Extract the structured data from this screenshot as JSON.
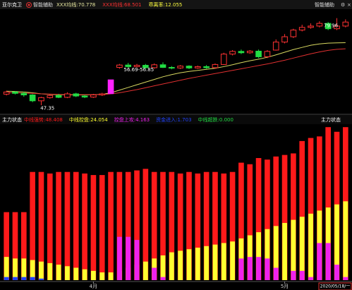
{
  "chart_data": [
    {
      "type": "candlestick",
      "title": "亚尔克卫",
      "indicator": "智能辅助",
      "header_items": [
        {
          "text": "XXX均线:70.778",
          "color": "#e8e8a0"
        },
        {
          "text": "XXX均线:68.501",
          "color": "#ff3030"
        },
        {
          "text": "乖离率:12.055",
          "color": "#ffff40"
        }
      ],
      "open": [
        51.5,
        52.3,
        51.8,
        51.2,
        49.0,
        50.2,
        51.0,
        50.3,
        51.6,
        50.8,
        50.4,
        51.2,
        51.68,
        61.5,
        62.4,
        61.8,
        62.3,
        61.4,
        62.5,
        61.5,
        61.3,
        62.0,
        61.3,
        61.8,
        61.4,
        62.6,
        66.5,
        67.5,
        67.0,
        67.6,
        65.5,
        68.0,
        71.0,
        73.0,
        75.5,
        76.5,
        77.0,
        78.0,
        76.0,
        77.0
      ],
      "high": [
        52.8,
        52.6,
        52.4,
        51.5,
        50.5,
        51.5,
        51.6,
        52.2,
        52.0,
        51.2,
        51.6,
        52.0,
        56.85,
        62.8,
        63.2,
        62.8,
        62.8,
        63.0,
        63.4,
        62.0,
        62.4,
        62.3,
        62.2,
        62.4,
        63.0,
        67.0,
        68.0,
        68.2,
        68.0,
        68.2,
        68.0,
        72.0,
        74.0,
        76.0,
        77.5,
        78.0,
        78.8,
        78.5,
        79.96,
        79.5
      ],
      "low": [
        51.0,
        51.4,
        50.5,
        48.5,
        47.35,
        49.8,
        50.0,
        50.0,
        50.4,
        50.0,
        50.1,
        50.8,
        51.6,
        61.0,
        61.2,
        61.5,
        61.0,
        61.0,
        61.3,
        60.8,
        60.9,
        60.9,
        61.0,
        61.0,
        61.0,
        62.4,
        66.0,
        66.5,
        66.6,
        65.0,
        65.0,
        67.8,
        70.5,
        72.5,
        75.0,
        76.0,
        76.5,
        75.5,
        75.5,
        76.5
      ],
      "close": [
        52.3,
        51.8,
        51.2,
        49.0,
        50.2,
        51.0,
        50.3,
        51.6,
        50.8,
        50.4,
        51.2,
        51.6,
        56.85,
        62.4,
        61.8,
        62.3,
        61.4,
        62.5,
        61.5,
        61.3,
        62.0,
        61.3,
        61.8,
        61.4,
        62.6,
        66.5,
        67.5,
        67.0,
        67.6,
        65.5,
        67.5,
        71.0,
        73.0,
        75.5,
        76.5,
        77.0,
        78.0,
        76.0,
        77.0,
        78.5
      ],
      "up_color": "#ff3232",
      "down_color": "#22dd44",
      "limit_up_color": "#ff22ff",
      "lines": [
        {
          "color": "#d8d860",
          "values": [
            52.6,
            52.5,
            52.3,
            52.0,
            51.6,
            51.4,
            51.3,
            51.2,
            51.2,
            51.2,
            51.3,
            51.4,
            52.0,
            53.0,
            54.0,
            55.0,
            56.0,
            57.0,
            58.0,
            58.8,
            59.5,
            60.0,
            60.4,
            60.8,
            61.2,
            61.8,
            62.5,
            63.3,
            64.0,
            64.6,
            65.3,
            66.2,
            67.2,
            68.2,
            69.0,
            69.8,
            70.3,
            70.6,
            70.7,
            70.778
          ]
        },
        {
          "color": "#e03030",
          "values": [
            52.0,
            52.0,
            51.9,
            51.8,
            51.6,
            51.5,
            51.4,
            51.3,
            51.3,
            51.3,
            51.3,
            51.3,
            51.6,
            52.0,
            52.6,
            53.2,
            53.9,
            54.6,
            55.3,
            56.0,
            56.7,
            57.4,
            58.0,
            58.6,
            59.2,
            59.8,
            60.4,
            61.0,
            61.6,
            62.2,
            62.8,
            63.5,
            64.2,
            65.0,
            65.8,
            66.6,
            67.3,
            67.9,
            68.3,
            68.501
          ]
        }
      ],
      "annotations": [
        "56.69-56.85",
        "47.35",
        "79.96"
      ],
      "ylim": [
        45,
        82
      ]
    },
    {
      "type": "bar_overlay",
      "title": "主力状态",
      "series": [
        {
          "name": "中线强势:48.408",
          "color": "#ff1a1a",
          "values": [
            44,
            44,
            44,
            70,
            70,
            69,
            70,
            70,
            70,
            69,
            68,
            68,
            70,
            70,
            70,
            71,
            72,
            70,
            70,
            70,
            69,
            70,
            69,
            70,
            70,
            69,
            70,
            76,
            75,
            79,
            78,
            80,
            81,
            82,
            90,
            92,
            93,
            99,
            96,
            99
          ]
        },
        {
          "name": "中线控盘:24.054",
          "color": "#ffff30",
          "values": [
            15,
            14,
            14,
            13,
            12,
            11,
            10,
            9,
            8,
            7,
            6,
            5,
            5,
            6,
            8,
            10,
            12,
            14,
            16,
            18,
            19,
            20,
            21,
            22,
            23,
            24,
            25,
            27,
            29,
            31,
            33,
            35,
            37,
            39,
            41,
            43,
            45,
            47,
            49,
            51
          ]
        },
        {
          "name": "控盘上攻:4.163",
          "color": "#ee22ee",
          "values": [
            0,
            0,
            0,
            0,
            0,
            0,
            0,
            0,
            0,
            0,
            0,
            0,
            0,
            28,
            28,
            26,
            0,
            8,
            2,
            0,
            0,
            0,
            0,
            0,
            0,
            0,
            0,
            14,
            15,
            15,
            14,
            8,
            0,
            6,
            6,
            2,
            24,
            24,
            10,
            2
          ]
        },
        {
          "name": "资金进入:1.703",
          "color": "#2244ff",
          "values": [
            2,
            2,
            2,
            2,
            1,
            0,
            0,
            0,
            0,
            0,
            0,
            0,
            0,
            0,
            0,
            0,
            0,
            0,
            0,
            0,
            0,
            0,
            0,
            0,
            0,
            0,
            0,
            0,
            0,
            0,
            0,
            0,
            0,
            0,
            0,
            0,
            0,
            0,
            0,
            0
          ]
        },
        {
          "name": "中线超跌:0.000",
          "color": "#22dd44",
          "values": [
            0,
            0,
            0,
            0,
            0,
            0,
            0,
            0,
            0,
            0,
            0,
            0,
            0,
            0,
            0,
            0,
            0,
            0,
            0,
            0,
            0,
            0,
            0,
            0,
            0,
            0,
            0,
            0,
            0,
            0,
            0,
            0,
            0,
            0,
            0,
            0,
            0,
            0,
            0,
            0
          ]
        }
      ],
      "categories": [
        null,
        null,
        null,
        null,
        null,
        null,
        null,
        null,
        null,
        null,
        "4月",
        null,
        null,
        null,
        null,
        null,
        null,
        null,
        null,
        null,
        null,
        null,
        null,
        null,
        null,
        null,
        null,
        null,
        null,
        null,
        null,
        null,
        "5月",
        null,
        null,
        null,
        null,
        null,
        null,
        null
      ],
      "cursor_date": "2020/05/18/一",
      "ylim": [
        0,
        100
      ]
    }
  ]
}
